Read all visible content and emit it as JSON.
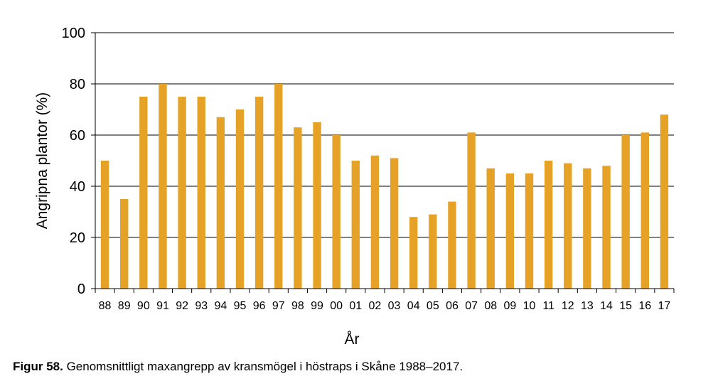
{
  "chart_data": {
    "type": "bar",
    "categories": [
      "88",
      "89",
      "90",
      "91",
      "92",
      "93",
      "94",
      "95",
      "96",
      "97",
      "98",
      "99",
      "00",
      "01",
      "02",
      "03",
      "04",
      "05",
      "06",
      "07",
      "08",
      "09",
      "10",
      "11",
      "12",
      "13",
      "14",
      "15",
      "16",
      "17"
    ],
    "values": [
      50,
      35,
      75,
      80,
      75,
      75,
      67,
      70,
      75,
      80,
      63,
      65,
      60,
      50,
      52,
      51,
      28,
      29,
      34,
      61,
      47,
      45,
      45,
      50,
      49,
      47,
      48,
      60,
      61,
      68
    ],
    "xlabel": "År",
    "ylabel": "Angripna plantor (%)",
    "ylim": [
      0,
      100
    ],
    "yticks": [
      0,
      20,
      40,
      60,
      80,
      100
    ],
    "grid": true,
    "bar_color": "#E5A227"
  },
  "caption": {
    "label": "Figur 58.",
    "text": " Genomsnittligt maxangrepp av kransmögel i höstraps i Skåne 1988–2017."
  }
}
